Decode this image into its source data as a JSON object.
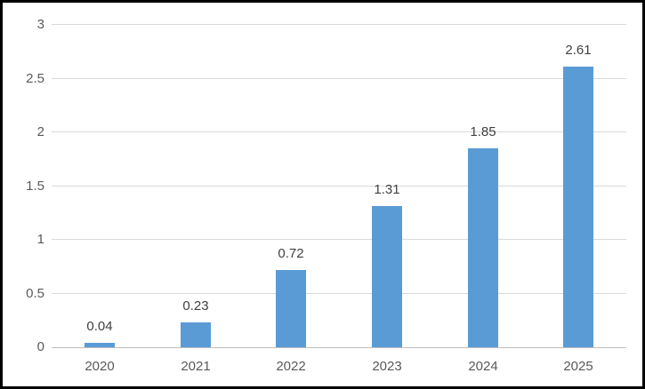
{
  "chart_data": {
    "type": "bar",
    "title": "",
    "xlabel": "",
    "ylabel": "",
    "categories": [
      "2020",
      "2021",
      "2022",
      "2023",
      "2024",
      "2025"
    ],
    "values": [
      0.04,
      0.23,
      0.72,
      1.31,
      1.85,
      2.61
    ],
    "data_labels": [
      "0.04",
      "0.23",
      "0.72",
      "1.31",
      "1.85",
      "2.61"
    ],
    "ylim": [
      0,
      3
    ],
    "y_ticks": [
      0,
      0.5,
      1,
      1.5,
      2,
      2.5,
      3
    ],
    "y_tick_labels": [
      "0",
      "0.5",
      "1",
      "1.5",
      "2",
      "2.5",
      "3"
    ],
    "grid": true,
    "legend": "none",
    "colors": {
      "bar_fill": "#5b9bd5",
      "gridline": "#d9d9d9",
      "axis_line": "#bfbfbf",
      "tick_label_text": "#595959",
      "data_label_text": "#404040",
      "frame_border": "#000000",
      "background": "#ffffff"
    }
  }
}
